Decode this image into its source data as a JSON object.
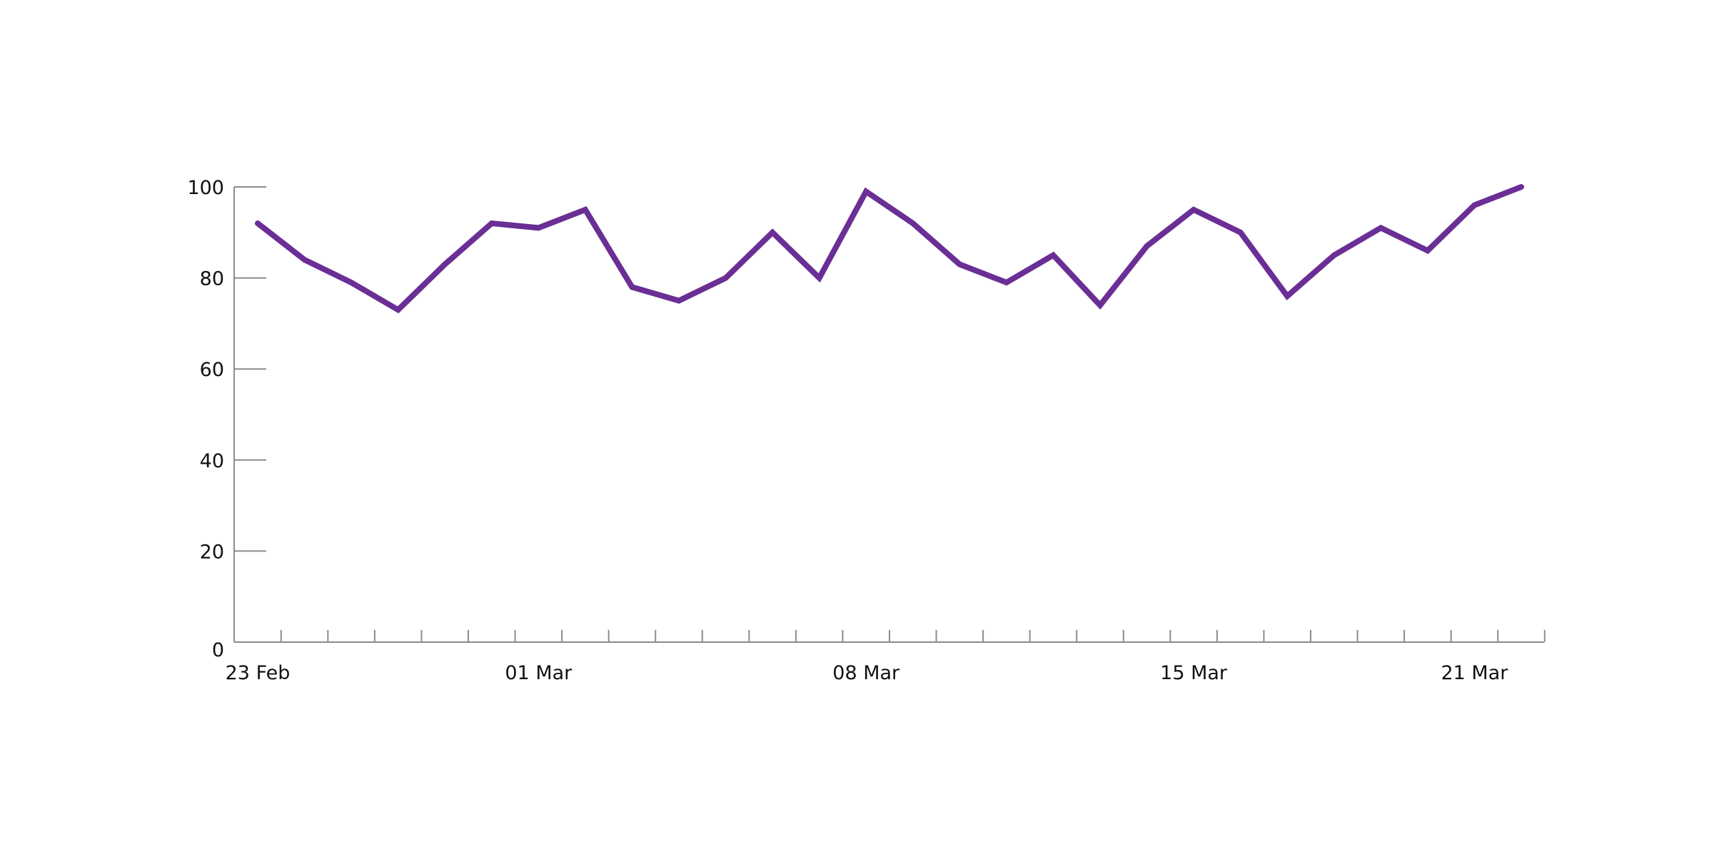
{
  "chart_data": {
    "type": "line",
    "title": "",
    "xlabel": "",
    "ylabel": "",
    "ylim": [
      0,
      100
    ],
    "y_ticks": [
      0,
      20,
      40,
      60,
      80,
      100
    ],
    "x_tick_labels": [
      {
        "date": "2021-02-23",
        "label": "23 Feb"
      },
      {
        "date": "2021-03-01",
        "label": "01 Mar"
      },
      {
        "date": "2021-03-08",
        "label": "08 Mar"
      },
      {
        "date": "2021-03-15",
        "label": "15 Mar"
      },
      {
        "date": "2021-03-21",
        "label": "21 Mar"
      }
    ],
    "xlim": [
      "2021-02-22",
      "2021-03-22"
    ],
    "grid": false,
    "series": [
      {
        "color": "#6a2e94",
        "x": [
          "2021-02-23",
          "2021-02-24",
          "2021-02-25",
          "2021-02-26",
          "2021-02-27",
          "2021-02-28",
          "2021-03-01",
          "2021-03-02",
          "2021-03-03",
          "2021-03-04",
          "2021-03-05",
          "2021-03-06",
          "2021-03-07",
          "2021-03-08",
          "2021-03-09",
          "2021-03-10",
          "2021-03-11",
          "2021-03-12",
          "2021-03-13",
          "2021-03-14",
          "2021-03-15",
          "2021-03-16",
          "2021-03-17",
          "2021-03-18",
          "2021-03-19",
          "2021-03-20",
          "2021-03-21",
          "2021-03-22"
        ],
        "values": [
          92,
          84,
          79,
          73,
          83,
          92,
          91,
          95,
          78,
          75,
          80,
          90,
          80,
          99,
          92,
          83,
          79,
          85,
          74,
          87,
          95,
          90,
          76,
          85,
          91,
          86,
          96,
          100
        ]
      }
    ]
  }
}
